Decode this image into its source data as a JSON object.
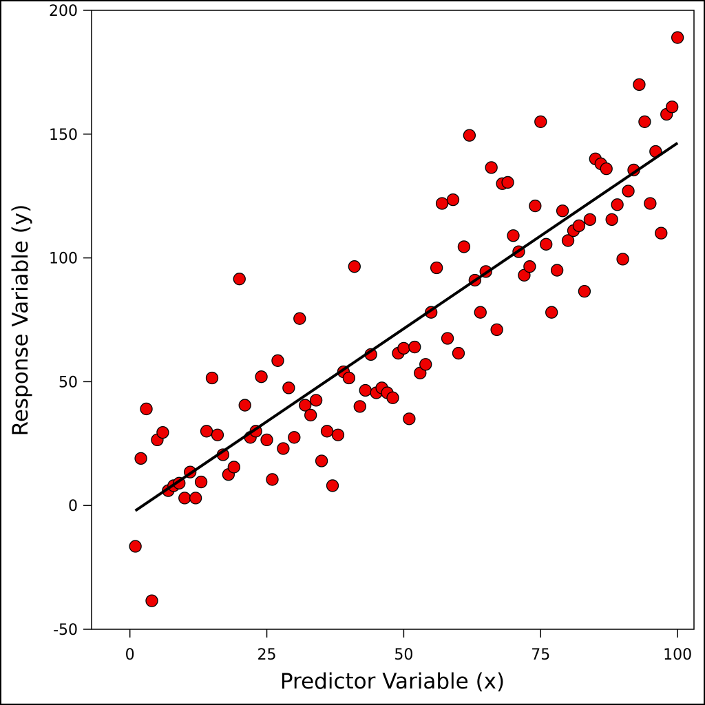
{
  "chart_data": {
    "type": "scatter",
    "title": "",
    "xlabel": "Predictor Variable (x)",
    "ylabel": "Response Variable (y)",
    "xlim": [
      -7,
      103
    ],
    "ylim": [
      -50,
      200
    ],
    "x_ticks": [
      0,
      25,
      50,
      75,
      100
    ],
    "y_ticks": [
      -50,
      0,
      50,
      100,
      150,
      200
    ],
    "grid": false,
    "legend": "none",
    "colors": {
      "point_fill": "#ee0000",
      "point_stroke": "#000000",
      "line": "#000000",
      "frame": "#000000"
    },
    "series": [
      {
        "type": "scatter",
        "x": [
          1,
          2,
          3,
          4,
          5,
          6,
          7,
          8,
          9,
          10,
          11,
          12,
          13,
          14,
          15,
          16,
          17,
          18,
          19,
          20,
          21,
          22,
          23,
          24,
          25,
          26,
          27,
          28,
          29,
          30,
          31,
          32,
          33,
          34,
          35,
          36,
          37,
          38,
          39,
          40,
          41,
          42,
          43,
          44,
          45,
          46,
          47,
          48,
          49,
          50,
          51,
          52,
          53,
          54,
          55,
          56,
          57,
          58,
          59,
          60,
          61,
          62,
          63,
          64,
          65,
          66,
          67,
          68,
          69,
          70,
          71,
          72,
          73,
          74,
          75,
          76,
          77,
          78,
          79,
          80,
          81,
          82,
          83,
          84,
          85,
          86,
          87,
          88,
          89,
          90,
          91,
          92,
          93,
          94,
          95,
          96,
          97,
          98,
          99,
          100
        ],
        "y": [
          -16.5,
          19,
          39,
          -38.5,
          26.5,
          29.5,
          6,
          8,
          9,
          3,
          13.5,
          3,
          9.5,
          30,
          51.5,
          28.5,
          20.5,
          12.5,
          15.5,
          91.5,
          40.5,
          27.5,
          30,
          52,
          26.5,
          10.5,
          58.5,
          23,
          47.5,
          27.5,
          75.5,
          40.5,
          36.5,
          42.5,
          18,
          30,
          8,
          28.5,
          54,
          51.5,
          96.5,
          40,
          46.5,
          61,
          45.5,
          47.5,
          45.5,
          43.5,
          61.5,
          63.5,
          35,
          64,
          53.5,
          57,
          78,
          96,
          122,
          67.5,
          123.5,
          61.5,
          104.5,
          149.5,
          91,
          78,
          94.5,
          136.5,
          71,
          130,
          130.5,
          109,
          102.5,
          93,
          96.5,
          121,
          155,
          105.5,
          78,
          95,
          119,
          107,
          111,
          113,
          86.5,
          115.5,
          140,
          138,
          136,
          115.5,
          121.5,
          99.5,
          127,
          135.5,
          170,
          155,
          122,
          143,
          110,
          158,
          161,
          189
        ]
      },
      {
        "type": "line",
        "name": "",
        "x": [
          1,
          100
        ],
        "y": [
          -2.1,
          146.4
        ]
      }
    ]
  }
}
